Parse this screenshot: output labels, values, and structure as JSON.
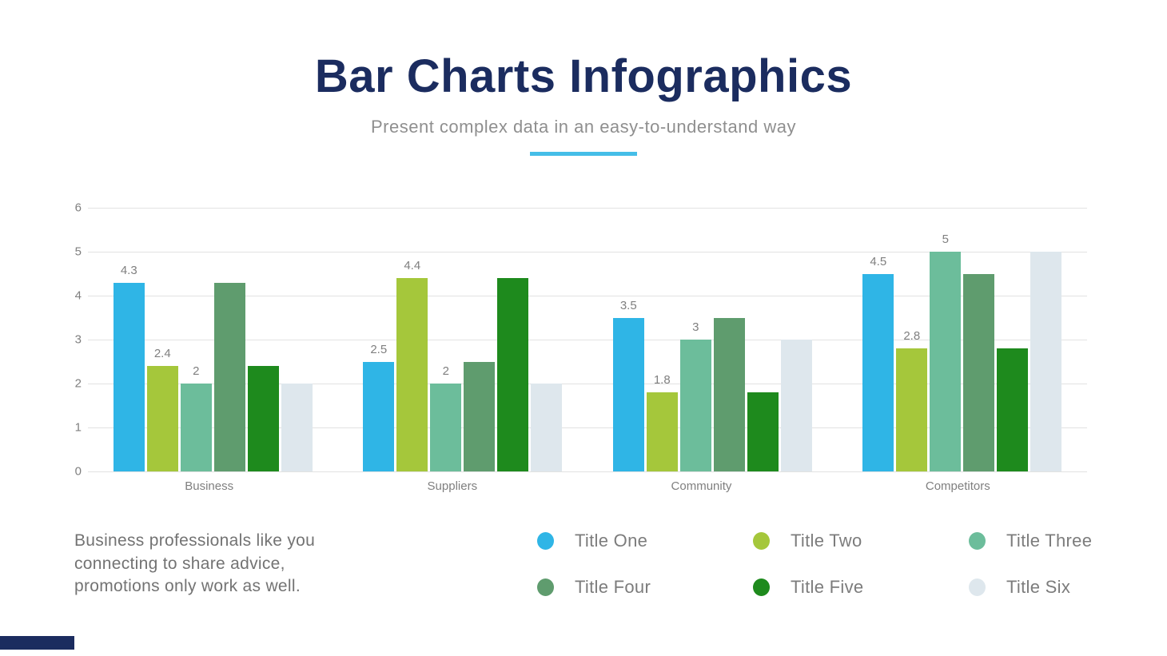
{
  "header": {
    "title": "Bar Charts Infographics",
    "subtitle": "Present complex data in an easy-to-understand way",
    "accent_color": "#45BEE8",
    "title_color": "#1B2C5F"
  },
  "description": {
    "text": "Business professionals like you connecting to share advice, promotions only work as well."
  },
  "footer": {
    "accent_bar_color": "#1B2C5F"
  },
  "chart_data": {
    "type": "bar",
    "title": "",
    "xlabel": "",
    "ylabel": "",
    "categories": [
      "Business",
      "Suppliers",
      "Community",
      "Competitors"
    ],
    "series": [
      {
        "name": "Title One",
        "color": "#2FB5E6",
        "values": [
          4.3,
          2.5,
          3.5,
          4.5
        ],
        "show_labels": true
      },
      {
        "name": "Title Two",
        "color": "#A5C73B",
        "values": [
          2.4,
          4.4,
          1.8,
          2.8
        ],
        "show_labels": true
      },
      {
        "name": "Title Three",
        "color": "#6CBD9B",
        "values": [
          2,
          2,
          3,
          5
        ],
        "show_labels": true
      },
      {
        "name": "Title Four",
        "color": "#5F9C6E",
        "values": [
          4.3,
          2.5,
          3.5,
          4.5
        ],
        "show_labels": false
      },
      {
        "name": "Title Five",
        "color": "#1E8A1D",
        "values": [
          2.4,
          4.4,
          1.8,
          2.8
        ],
        "show_labels": false
      },
      {
        "name": "Title Six",
        "color": "#DEE7ED",
        "values": [
          2,
          2,
          3,
          5
        ],
        "show_labels": false
      }
    ],
    "ylim": [
      0,
      6
    ],
    "yticks": [
      0,
      1,
      2,
      3,
      4,
      5,
      6
    ],
    "grid": true,
    "gridline_color": "#E2E2E2",
    "tick_label_color": "#7F7F7F",
    "value_label_color": "#7F7F7F",
    "legend_position": "bottom",
    "legend_columns": 3
  }
}
